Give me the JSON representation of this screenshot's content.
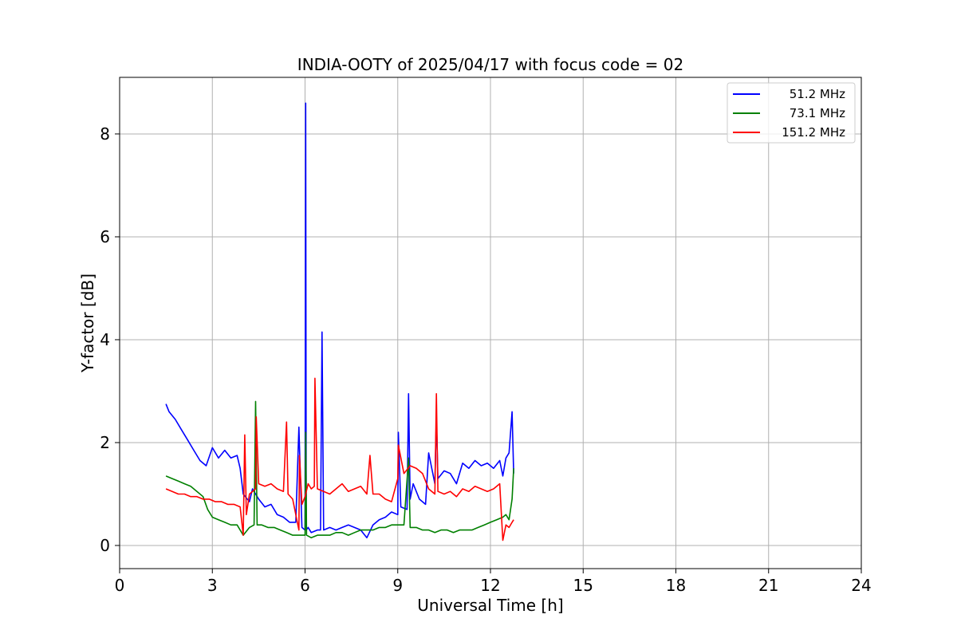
{
  "chart_data": {
    "type": "line",
    "title": "INDIA-OOTY of 2025/04/17 with focus code = 02",
    "xlabel": "Universal Time [h]",
    "ylabel": "Y-factor [dB]",
    "xlim": [
      0,
      24
    ],
    "ylim": [
      -0.45,
      9.1
    ],
    "xticks": [
      0,
      3,
      6,
      9,
      12,
      15,
      18,
      21,
      24
    ],
    "yticks": [
      0,
      2,
      4,
      6,
      8
    ],
    "grid": true,
    "legend_position": "top-right",
    "series": [
      {
        "name": "51.2 MHz",
        "color": "#0000ff",
        "x": [
          1.5,
          1.6,
          1.8,
          2.0,
          2.2,
          2.4,
          2.6,
          2.8,
          3.0,
          3.2,
          3.4,
          3.6,
          3.8,
          3.9,
          4.0,
          4.2,
          4.3,
          4.5,
          4.7,
          4.9,
          5.1,
          5.3,
          5.5,
          5.7,
          5.8,
          5.9,
          6.0,
          6.02,
          6.04,
          6.1,
          6.2,
          6.4,
          6.5,
          6.55,
          6.6,
          6.8,
          7.0,
          7.2,
          7.4,
          7.6,
          7.8,
          8.0,
          8.2,
          8.4,
          8.6,
          8.8,
          9.0,
          9.02,
          9.1,
          9.3,
          9.35,
          9.4,
          9.5,
          9.7,
          9.9,
          10.0,
          10.2,
          10.25,
          10.3,
          10.5,
          10.7,
          10.9,
          11.1,
          11.3,
          11.5,
          11.7,
          11.9,
          12.1,
          12.3,
          12.4,
          12.5,
          12.6,
          12.7,
          12.75
        ],
        "values": [
          2.75,
          2.6,
          2.45,
          2.25,
          2.05,
          1.85,
          1.65,
          1.55,
          1.9,
          1.7,
          1.85,
          1.7,
          1.75,
          1.5,
          1.0,
          0.85,
          1.1,
          0.9,
          0.75,
          0.8,
          0.6,
          0.55,
          0.45,
          0.45,
          2.3,
          0.35,
          0.3,
          8.6,
          0.3,
          0.35,
          0.25,
          0.3,
          0.3,
          4.15,
          0.3,
          0.35,
          0.3,
          0.35,
          0.4,
          0.35,
          0.3,
          0.15,
          0.4,
          0.5,
          0.55,
          0.65,
          0.6,
          2.2,
          0.75,
          0.7,
          2.95,
          0.9,
          1.2,
          0.9,
          0.8,
          1.8,
          1.2,
          2.5,
          1.3,
          1.45,
          1.4,
          1.2,
          1.6,
          1.5,
          1.65,
          1.55,
          1.6,
          1.5,
          1.65,
          1.35,
          1.7,
          1.8,
          2.6,
          1.4
        ]
      },
      {
        "name": "73.1 MHz",
        "color": "#008000",
        "x": [
          1.5,
          1.7,
          1.9,
          2.1,
          2.3,
          2.5,
          2.7,
          2.85,
          3.0,
          3.2,
          3.4,
          3.6,
          3.8,
          4.0,
          4.2,
          4.35,
          4.4,
          4.45,
          4.6,
          4.8,
          5.0,
          5.2,
          5.4,
          5.6,
          5.8,
          6.0,
          6.02,
          6.05,
          6.2,
          6.4,
          6.6,
          6.8,
          7.0,
          7.2,
          7.4,
          7.6,
          7.8,
          8.0,
          8.2,
          8.4,
          8.6,
          8.8,
          9.0,
          9.2,
          9.35,
          9.4,
          9.6,
          9.8,
          10.0,
          10.2,
          10.4,
          10.6,
          10.8,
          11.0,
          11.2,
          11.4,
          11.6,
          11.8,
          12.0,
          12.2,
          12.4,
          12.5,
          12.6,
          12.7,
          12.75
        ],
        "values": [
          1.35,
          1.3,
          1.25,
          1.2,
          1.15,
          1.05,
          0.95,
          0.7,
          0.55,
          0.5,
          0.45,
          0.4,
          0.4,
          0.2,
          0.35,
          0.4,
          2.8,
          0.4,
          0.4,
          0.35,
          0.35,
          0.3,
          0.25,
          0.2,
          0.2,
          0.2,
          2.2,
          0.2,
          0.15,
          0.2,
          0.2,
          0.2,
          0.25,
          0.25,
          0.2,
          0.25,
          0.3,
          0.3,
          0.3,
          0.35,
          0.35,
          0.4,
          0.4,
          0.4,
          1.7,
          0.35,
          0.35,
          0.3,
          0.3,
          0.25,
          0.3,
          0.3,
          0.25,
          0.3,
          0.3,
          0.3,
          0.35,
          0.4,
          0.45,
          0.5,
          0.55,
          0.6,
          0.5,
          0.9,
          1.5
        ]
      },
      {
        "name": "151.2 MHz",
        "color": "#ff0000",
        "x": [
          1.5,
          1.7,
          1.9,
          2.1,
          2.3,
          2.5,
          2.7,
          2.9,
          3.1,
          3.3,
          3.5,
          3.7,
          3.9,
          4.0,
          4.05,
          4.1,
          4.2,
          4.4,
          4.42,
          4.5,
          4.7,
          4.9,
          5.1,
          5.3,
          5.4,
          5.45,
          5.6,
          5.8,
          5.82,
          5.9,
          6.0,
          6.1,
          6.2,
          6.3,
          6.32,
          6.4,
          6.6,
          6.8,
          7.0,
          7.2,
          7.4,
          7.6,
          7.8,
          8.0,
          8.1,
          8.2,
          8.4,
          8.6,
          8.8,
          9.0,
          9.02,
          9.2,
          9.4,
          9.6,
          9.8,
          10.0,
          10.2,
          10.25,
          10.3,
          10.5,
          10.7,
          10.9,
          11.1,
          11.3,
          11.5,
          11.7,
          11.9,
          12.1,
          12.3,
          12.4,
          12.5,
          12.6,
          12.7,
          12.75
        ],
        "values": [
          1.1,
          1.05,
          1.0,
          1.0,
          0.95,
          0.95,
          0.9,
          0.9,
          0.85,
          0.85,
          0.8,
          0.8,
          0.75,
          0.2,
          2.15,
          0.6,
          1.0,
          1.1,
          2.5,
          1.2,
          1.15,
          1.2,
          1.1,
          1.05,
          2.4,
          1.0,
          0.9,
          0.3,
          1.75,
          0.8,
          0.95,
          1.2,
          1.1,
          1.15,
          3.25,
          1.1,
          1.05,
          1.0,
          1.1,
          1.2,
          1.05,
          1.1,
          1.15,
          1.0,
          1.75,
          1.0,
          1.0,
          0.9,
          0.85,
          1.3,
          1.95,
          1.4,
          1.55,
          1.5,
          1.4,
          1.1,
          1.0,
          2.95,
          1.05,
          1.0,
          1.05,
          0.95,
          1.1,
          1.05,
          1.15,
          1.1,
          1.05,
          1.1,
          1.2,
          0.1,
          0.4,
          0.35,
          0.45,
          0.5
        ]
      }
    ]
  }
}
